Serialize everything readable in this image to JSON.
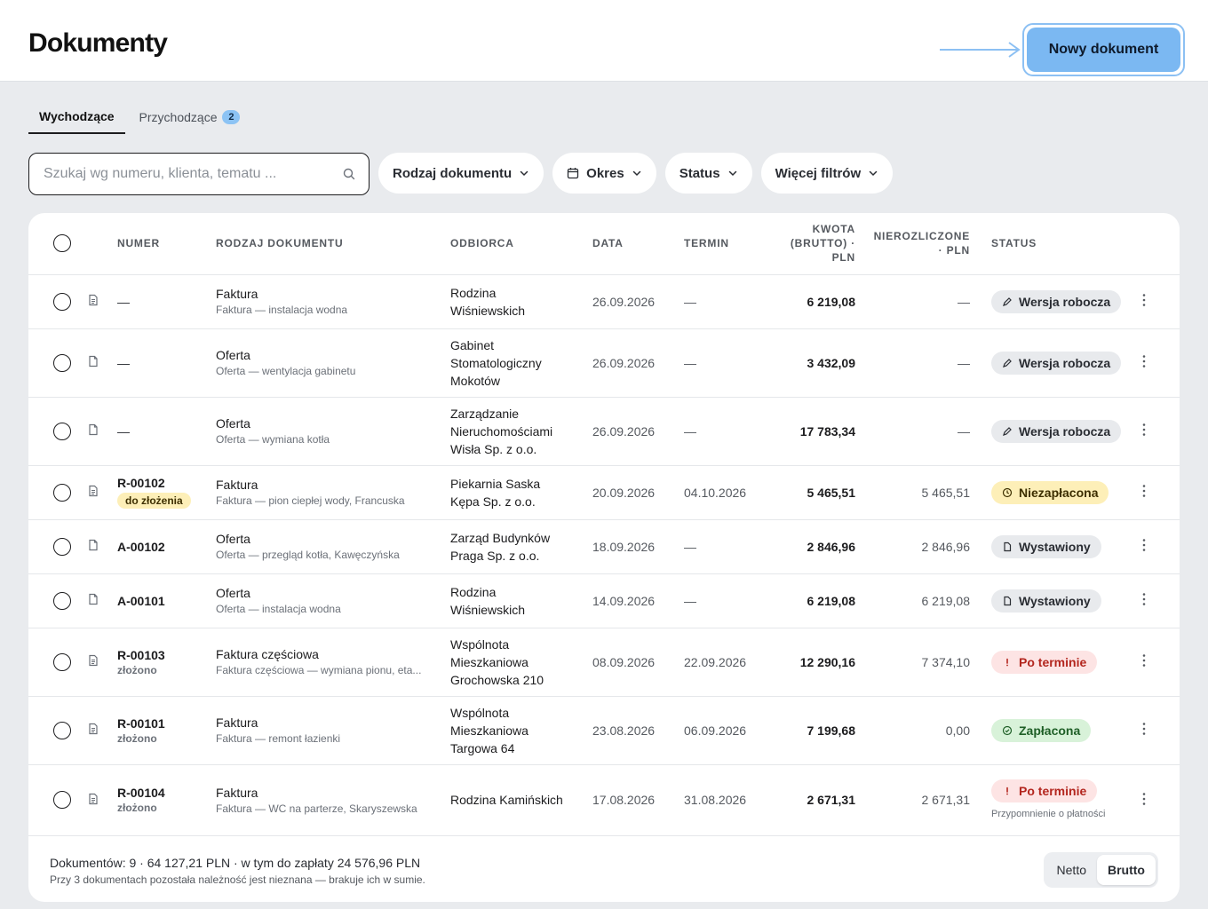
{
  "header": {
    "title": "Dokumenty",
    "new_document_label": "Nowy dokument"
  },
  "tabs": [
    {
      "label": "Wychodzące",
      "active": true
    },
    {
      "label": "Przychodzące",
      "count": "2"
    }
  ],
  "filters": {
    "search_placeholder": "Szukaj wg numeru, klienta, tematu ...",
    "document_type": "Rodzaj dokumentu",
    "period": "Okres",
    "status": "Status",
    "more": "Więcej filtrów"
  },
  "table": {
    "columns": {
      "number": "NUMER",
      "type": "RODZAJ DOKUMENTU",
      "recipient": "ODBIORCA",
      "date": "DATA",
      "due": "TERMIN",
      "amount_l1": "KWOTA",
      "amount_l2": "(BRUTTO) ·",
      "amount_l3": "PLN",
      "unsettled_l1": "NIEROZLICZONE",
      "unsettled_l2": "· PLN",
      "status": "STATUS"
    },
    "rows": [
      {
        "number": "—",
        "sub": "",
        "tag": "",
        "type": "Faktura",
        "type_sub": "Faktura — instalacja wodna",
        "recipient": [
          "Rodzina",
          "Wiśniewskich"
        ],
        "date": "26.09.2026",
        "due": "—",
        "amount": "6 219,08",
        "unsettled": "—",
        "status": "Wersja robocza",
        "status_kind": "draft",
        "status_note": "",
        "doc_icon": "invoice-icon"
      },
      {
        "number": "—",
        "sub": "",
        "tag": "",
        "type": "Oferta",
        "type_sub": "Oferta — wentylacja gabinetu",
        "recipient": [
          "Gabinet",
          "Stomatologiczny",
          "Mokotów"
        ],
        "date": "26.09.2026",
        "due": "—",
        "amount": "3 432,09",
        "unsettled": "—",
        "status": "Wersja robocza",
        "status_kind": "draft",
        "status_note": "",
        "doc_icon": "offer-icon"
      },
      {
        "number": "—",
        "sub": "",
        "tag": "",
        "type": "Oferta",
        "type_sub": "Oferta — wymiana kotła",
        "recipient": [
          "Zarządzanie",
          "Nieruchomościami",
          "Wisła Sp. z o.o."
        ],
        "date": "26.09.2026",
        "due": "—",
        "amount": "17 783,34",
        "unsettled": "—",
        "status": "Wersja robocza",
        "status_kind": "draft",
        "status_note": "",
        "doc_icon": "offer-icon"
      },
      {
        "number": "R-00102",
        "sub": "",
        "tag": "do złożenia",
        "type": "Faktura",
        "type_sub": "Faktura — pion ciepłej wody, Francuska",
        "recipient": [
          "Piekarnia Saska",
          "Kępa Sp. z o.o."
        ],
        "date": "20.09.2026",
        "due": "04.10.2026",
        "amount": "5 465,51",
        "unsettled": "5 465,51",
        "status": "Niezapłacona",
        "status_kind": "unpaid",
        "status_note": "",
        "doc_icon": "invoice-icon"
      },
      {
        "number": "A-00102",
        "sub": "",
        "tag": "",
        "type": "Oferta",
        "type_sub": "Oferta — przegląd kotła, Kawęczyńska",
        "recipient": [
          "Zarząd Budynków",
          "Praga Sp. z o.o."
        ],
        "date": "18.09.2026",
        "due": "—",
        "amount": "2 846,96",
        "unsettled": "2 846,96",
        "status": "Wystawiony",
        "status_kind": "issued",
        "status_note": "",
        "doc_icon": "offer-icon"
      },
      {
        "number": "A-00101",
        "sub": "",
        "tag": "",
        "type": "Oferta",
        "type_sub": "Oferta — instalacja wodna",
        "recipient": [
          "Rodzina",
          "Wiśniewskich"
        ],
        "date": "14.09.2026",
        "due": "—",
        "amount": "6 219,08",
        "unsettled": "6 219,08",
        "status": "Wystawiony",
        "status_kind": "issued",
        "status_note": "",
        "doc_icon": "offer-icon"
      },
      {
        "number": "R-00103",
        "sub": "złożono",
        "tag": "",
        "type": "Faktura częściowa",
        "type_sub": "Faktura częściowa — wymiana pionu, eta...",
        "recipient": [
          "Wspólnota",
          "Mieszkaniowa",
          "Grochowska 210"
        ],
        "date": "08.09.2026",
        "due": "22.09.2026",
        "amount": "12 290,16",
        "unsettled": "7 374,10",
        "status": "Po terminie",
        "status_kind": "overdue",
        "status_note": "",
        "doc_icon": "invoice-icon"
      },
      {
        "number": "R-00101",
        "sub": "złożono",
        "tag": "",
        "type": "Faktura",
        "type_sub": "Faktura — remont łazienki",
        "recipient": [
          "Wspólnota",
          "Mieszkaniowa",
          "Targowa 64"
        ],
        "date": "23.08.2026",
        "due": "06.09.2026",
        "amount": "7 199,68",
        "unsettled": "0,00",
        "status": "Zapłacona",
        "status_kind": "paid",
        "status_note": "",
        "doc_icon": "invoice-icon"
      },
      {
        "number": "R-00104",
        "sub": "złożono",
        "tag": "",
        "type": "Faktura",
        "type_sub": "Faktura — WC na parterze, Skaryszewska",
        "recipient": [
          "Rodzina Kamińskich"
        ],
        "date": "17.08.2026",
        "due": "31.08.2026",
        "amount": "2 671,31",
        "unsettled": "2 671,31",
        "status": "Po terminie",
        "status_kind": "overdue",
        "status_note": "Przypomnienie o płatności",
        "doc_icon": "invoice-icon"
      }
    ]
  },
  "footer": {
    "summary": "Dokumentów: 9 · 64 127,21 PLN · w tym do zapłaty 24 576,96 PLN",
    "note": "Przy 3 dokumentach pozostała należność jest nieznana — brakuje ich w sumie.",
    "toggle": {
      "netto": "Netto",
      "brutto": "Brutto",
      "selected": "brutto"
    }
  },
  "colors": {
    "accent": "#7bb8f2",
    "draft": "#e8eaed",
    "unpaid": "#fdefb8",
    "overdue": "#fde4e4",
    "paid": "#d8f2d9"
  }
}
